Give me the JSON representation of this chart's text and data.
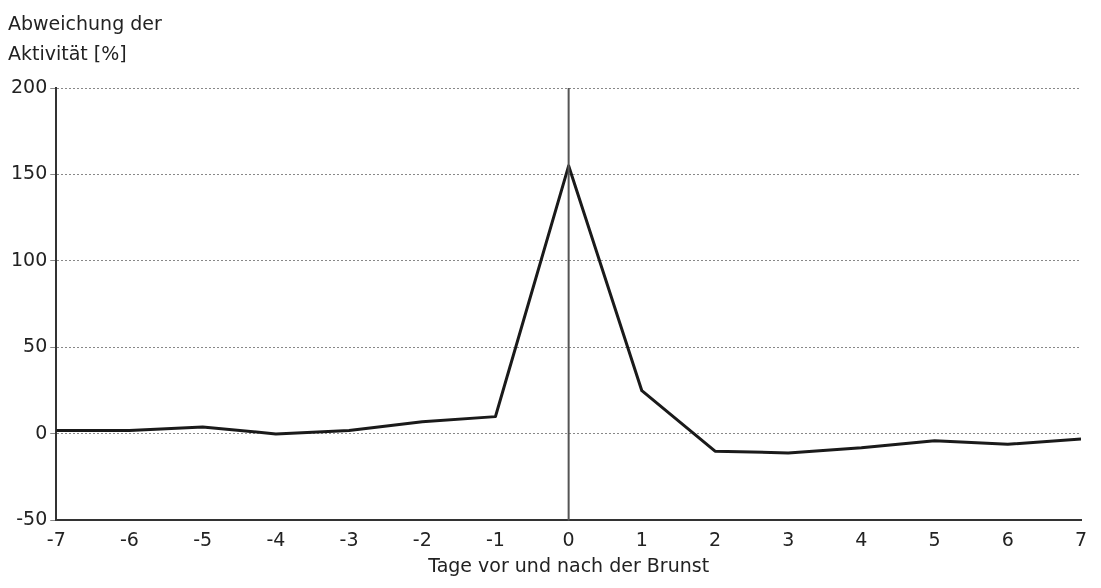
{
  "chart_data": {
    "type": "line",
    "ylabel": "Abweichung der Aktivität [%]",
    "xlabel": "Tage vor und nach der Brunst",
    "x": [
      -7,
      -6,
      -5,
      -4,
      -3,
      -2,
      -1,
      0,
      1,
      2,
      3,
      4,
      5,
      6,
      7
    ],
    "series": [
      {
        "color": "#1a1a1a",
        "values": [
          2,
          2,
          4,
          0,
          2,
          7,
          10,
          155,
          25,
          -10,
          -11,
          -8,
          -4,
          -6,
          -3
        ]
      }
    ],
    "xlim": [
      -7,
      7
    ],
    "xticks": [
      -7,
      -6,
      -5,
      -4,
      -3,
      -2,
      -1,
      0,
      1,
      2,
      3,
      4,
      5,
      6,
      7
    ],
    "ylim": [
      -50,
      200
    ],
    "yticks": [
      -50,
      0,
      50,
      100,
      150,
      200
    ],
    "grid": "y",
    "marker": "none",
    "line_style": "solid",
    "legend": false,
    "ref_lines": [
      {
        "axis": "x",
        "value": 0,
        "color": "#555555"
      }
    ]
  }
}
